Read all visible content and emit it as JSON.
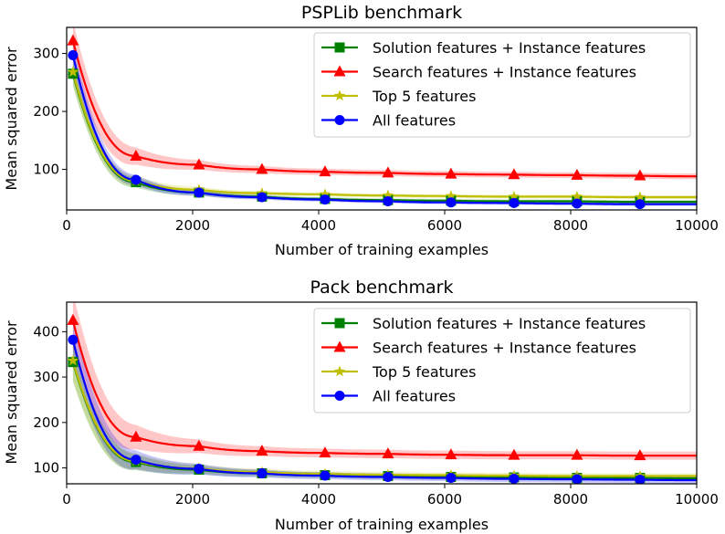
{
  "chart_data": [
    {
      "type": "line",
      "title": "PSPLib benchmark",
      "xlabel": "Number of training examples",
      "ylabel": "Mean squared error",
      "xlim": [
        0,
        10000
      ],
      "ylim": [
        30,
        345
      ],
      "xticks": [
        "0",
        "2000",
        "4000",
        "6000",
        "8000",
        "10000"
      ],
      "xtick_values": [
        0,
        2000,
        4000,
        6000,
        8000,
        10000
      ],
      "yticks": [
        "100",
        "200",
        "300"
      ],
      "ytick_values": [
        100,
        200,
        300
      ],
      "legend_position": "top-right",
      "x": [
        100,
        1100,
        2100,
        3100,
        4100,
        5100,
        6100,
        7100,
        8100,
        9100,
        10000
      ],
      "series": [
        {
          "name": "Solution features + Instance features",
          "color": "#008000",
          "marker": "square",
          "values": [
            265,
            78,
            60,
            53,
            49,
            47,
            46,
            45,
            45,
            44,
            44
          ],
          "band": 3
        },
        {
          "name": "Search features + Instance features",
          "color": "#ff0000",
          "marker": "triangle",
          "values": [
            322,
            123,
            108,
            100,
            96,
            94,
            92,
            91,
            90,
            89,
            88
          ],
          "band": 5
        },
        {
          "name": "Top 5 features",
          "color": "#bfbf00",
          "marker": "star",
          "values": [
            268,
            80,
            65,
            59,
            57,
            55,
            54,
            53,
            53,
            52,
            52
          ],
          "band": 3
        },
        {
          "name": "All features",
          "color": "#0000ff",
          "marker": "circle",
          "values": [
            297,
            82,
            60,
            52,
            48,
            45,
            43,
            42,
            41,
            40,
            40
          ],
          "band": 3
        }
      ]
    },
    {
      "type": "line",
      "title": "Pack benchmark",
      "xlabel": "Number of training examples",
      "ylabel": "Mean squared error",
      "xlim": [
        0,
        10000
      ],
      "ylim": [
        65,
        465
      ],
      "xticks": [
        "0",
        "2000",
        "4000",
        "6000",
        "8000",
        "10000"
      ],
      "xtick_values": [
        0,
        2000,
        4000,
        6000,
        8000,
        10000
      ],
      "yticks": [
        "100",
        "200",
        "300",
        "400"
      ],
      "ytick_values": [
        100,
        200,
        300,
        400
      ],
      "legend_position": "top-right",
      "x": [
        100,
        1100,
        2100,
        3100,
        4100,
        5100,
        6100,
        7100,
        8100,
        9100,
        10000
      ],
      "series": [
        {
          "name": "Solution features + Instance features",
          "color": "#008000",
          "marker": "square",
          "values": [
            333,
            113,
            96,
            88,
            84,
            82,
            80,
            79,
            78,
            78,
            77
          ],
          "band": 6
        },
        {
          "name": "Search features + Instance features",
          "color": "#ff0000",
          "marker": "triangle",
          "values": [
            425,
            168,
            148,
            137,
            133,
            131,
            129,
            128,
            128,
            127,
            127
          ],
          "band": 9
        },
        {
          "name": "Top 5 features",
          "color": "#bfbf00",
          "marker": "star",
          "values": [
            336,
            115,
            99,
            91,
            87,
            85,
            84,
            83,
            82,
            82,
            82
          ],
          "band": 6
        },
        {
          "name": "All features",
          "color": "#0000ff",
          "marker": "circle",
          "values": [
            382,
            118,
            98,
            88,
            83,
            80,
            78,
            76,
            75,
            74,
            73
          ],
          "band": 7
        }
      ]
    }
  ]
}
